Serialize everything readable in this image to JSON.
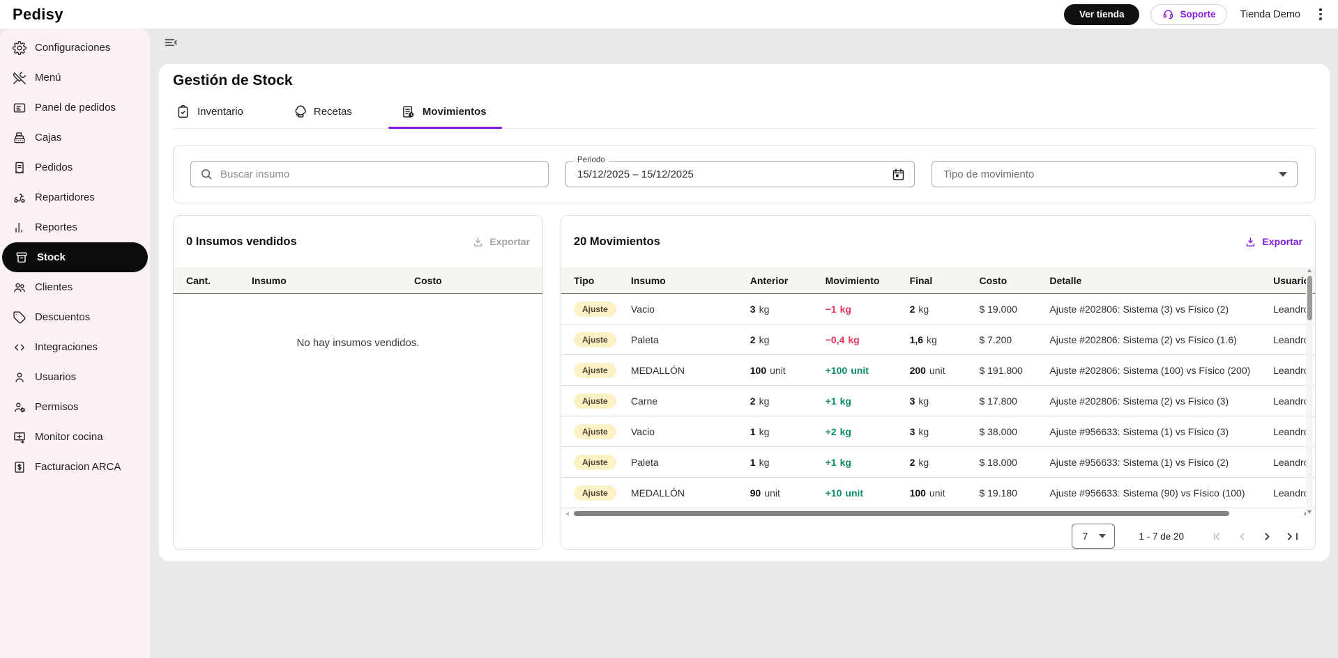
{
  "brand": "Pedisy",
  "topbar": {
    "ver_tienda_label": "Ver tienda",
    "soporte_label": "Soporte",
    "account_label": "Tienda Demo"
  },
  "sidebar": {
    "items": [
      {
        "label": "Configuraciones",
        "icon": "gear",
        "active": false
      },
      {
        "label": "Menú",
        "icon": "utensils",
        "active": false
      },
      {
        "label": "Panel de pedidos",
        "icon": "panel",
        "active": false
      },
      {
        "label": "Cajas",
        "icon": "register",
        "active": false
      },
      {
        "label": "Pedidos",
        "icon": "receipt",
        "active": false
      },
      {
        "label": "Repartidores",
        "icon": "scooter",
        "active": false
      },
      {
        "label": "Reportes",
        "icon": "chart",
        "active": false
      },
      {
        "label": "Stock",
        "icon": "box",
        "active": true
      },
      {
        "label": "Clientes",
        "icon": "people",
        "active": false
      },
      {
        "label": "Descuentos",
        "icon": "tag",
        "active": false
      },
      {
        "label": "Integraciones",
        "icon": "code",
        "active": false
      },
      {
        "label": "Usuarios",
        "icon": "user",
        "active": false
      },
      {
        "label": "Permisos",
        "icon": "user-gear",
        "active": false
      },
      {
        "label": "Monitor cocina",
        "icon": "monitor",
        "active": false
      },
      {
        "label": "Facturacion ARCA",
        "icon": "invoice",
        "active": false
      }
    ]
  },
  "page": {
    "title": "Gestión de Stock",
    "tabs": [
      {
        "label": "Inventario",
        "icon": "clipboard",
        "active": false
      },
      {
        "label": "Recetas",
        "icon": "chef-hat",
        "active": false
      },
      {
        "label": "Movimientos",
        "icon": "doc-clock",
        "active": true
      }
    ]
  },
  "filters": {
    "search_placeholder": "Buscar insumo",
    "period_label": "Periodo",
    "period_value": "15/12/2025  –  15/12/2025",
    "movement_type_placeholder": "Tipo de movimiento"
  },
  "sold_panel": {
    "title": "0 Insumos vendidos",
    "export_label": "Exportar",
    "columns": [
      "Cant.",
      "Insumo",
      "Costo"
    ],
    "empty_message": "No hay insumos vendidos."
  },
  "movements_panel": {
    "title": "20 Movimientos",
    "export_label": "Exportar",
    "columns": [
      "Tipo",
      "Insumo",
      "Anterior",
      "Movimiento",
      "Final",
      "Costo",
      "Detalle",
      "Usuario"
    ],
    "rows": [
      {
        "tipo": "Ajuste",
        "insumo": "Vacio",
        "anterior": {
          "v": "3",
          "u": "kg"
        },
        "movimiento": {
          "v": "−1",
          "u": "kg",
          "dir": "neg"
        },
        "final": {
          "v": "2",
          "u": "kg"
        },
        "costo": "$ 19.000",
        "detalle": "Ajuste #202806: Sistema (3) vs Físico (2)",
        "usuario": "Leandro"
      },
      {
        "tipo": "Ajuste",
        "insumo": "Paleta",
        "anterior": {
          "v": "2",
          "u": "kg"
        },
        "movimiento": {
          "v": "−0,4",
          "u": "kg",
          "dir": "neg"
        },
        "final": {
          "v": "1,6",
          "u": "kg"
        },
        "costo": "$ 7.200",
        "detalle": "Ajuste #202806: Sistema (2) vs Físico (1.6)",
        "usuario": "Leandro"
      },
      {
        "tipo": "Ajuste",
        "insumo": "MEDALLÓN",
        "anterior": {
          "v": "100",
          "u": "unit"
        },
        "movimiento": {
          "v": "+100",
          "u": "unit",
          "dir": "pos"
        },
        "final": {
          "v": "200",
          "u": "unit"
        },
        "costo": "$ 191.800",
        "detalle": "Ajuste #202806: Sistema (100) vs Físico (200)",
        "usuario": "Leandro"
      },
      {
        "tipo": "Ajuste",
        "insumo": "Carne",
        "anterior": {
          "v": "2",
          "u": "kg"
        },
        "movimiento": {
          "v": "+1",
          "u": "kg",
          "dir": "pos"
        },
        "final": {
          "v": "3",
          "u": "kg"
        },
        "costo": "$ 17.800",
        "detalle": "Ajuste #202806: Sistema (2) vs Físico (3)",
        "usuario": "Leandro"
      },
      {
        "tipo": "Ajuste",
        "insumo": "Vacio",
        "anterior": {
          "v": "1",
          "u": "kg"
        },
        "movimiento": {
          "v": "+2",
          "u": "kg",
          "dir": "pos"
        },
        "final": {
          "v": "3",
          "u": "kg"
        },
        "costo": "$ 38.000",
        "detalle": "Ajuste #956633: Sistema (1) vs Físico (3)",
        "usuario": "Leandro"
      },
      {
        "tipo": "Ajuste",
        "insumo": "Paleta",
        "anterior": {
          "v": "1",
          "u": "kg"
        },
        "movimiento": {
          "v": "+1",
          "u": "kg",
          "dir": "pos"
        },
        "final": {
          "v": "2",
          "u": "kg"
        },
        "costo": "$ 18.000",
        "detalle": "Ajuste #956633: Sistema (1) vs Físico (2)",
        "usuario": "Leandro"
      },
      {
        "tipo": "Ajuste",
        "insumo": "MEDALLÓN",
        "anterior": {
          "v": "90",
          "u": "unit"
        },
        "movimiento": {
          "v": "+10",
          "u": "unit",
          "dir": "pos"
        },
        "final": {
          "v": "100",
          "u": "unit"
        },
        "costo": "$ 19.180",
        "detalle": "Ajuste #956633: Sistema (90) vs Físico (100)",
        "usuario": "Leandro"
      }
    ],
    "pagination": {
      "page_size": "7",
      "range_label": "1 - 7 de 20"
    }
  },
  "colors": {
    "accent_purple": "#8318df",
    "negative_red": "#e73558",
    "positive_green": "#0d8a67",
    "badge_bg": "#fcf0c5",
    "sidebar_bg": "#fbf1f6",
    "active_item_bg": "#0c0c0c"
  }
}
